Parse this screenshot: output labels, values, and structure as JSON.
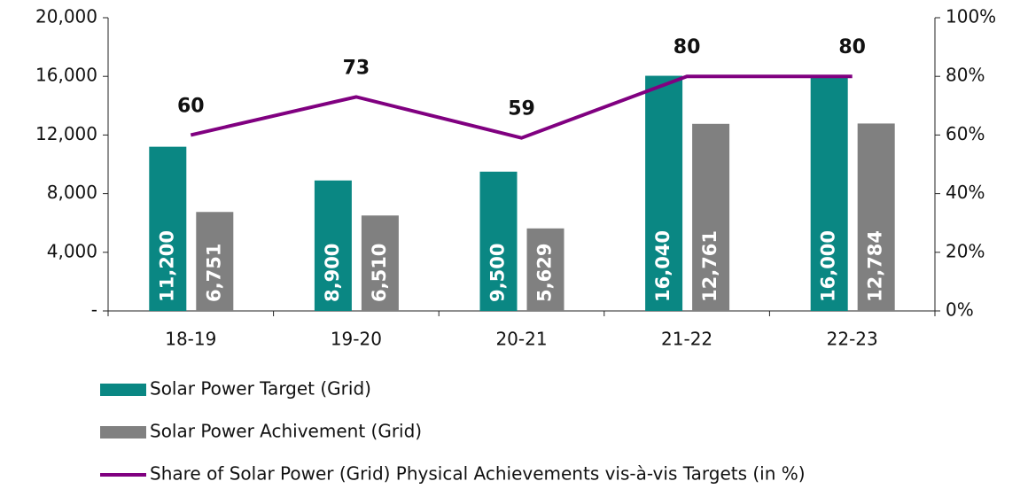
{
  "chart_data": {
    "type": "bar",
    "categories": [
      "18-19",
      "19-20",
      "20-21",
      "21-22",
      "22-23"
    ],
    "series": [
      {
        "name": "Solar Power Target (Grid)",
        "type": "bar",
        "color": "#0a8783",
        "values": [
          11200,
          8900,
          9500,
          16040,
          16000
        ],
        "value_labels": [
          "11,200",
          "8,900",
          "9,500",
          "16,040",
          "16,000"
        ]
      },
      {
        "name": "Solar Power Achivement (Grid)",
        "type": "bar",
        "color": "#808080",
        "values": [
          6751,
          6510,
          5629,
          12761,
          12784
        ],
        "value_labels": [
          "6,751",
          "6,510",
          "5,629",
          "12,761",
          "12,784"
        ]
      },
      {
        "name": "Share of Solar Power (Grid) Physical Achievements vis-à-vis Targets (in %)",
        "type": "line",
        "axis": "y2",
        "color": "#800080",
        "values": [
          60,
          73,
          59,
          80,
          80
        ]
      }
    ],
    "ylim": [
      0,
      20000
    ],
    "yticks": [
      {
        "value": 0,
        "label": "-"
      },
      {
        "value": 4000,
        "label": "4,000"
      },
      {
        "value": 8000,
        "label": "8,000"
      },
      {
        "value": 12000,
        "label": "12,000"
      },
      {
        "value": 16000,
        "label": "16,000"
      },
      {
        "value": 20000,
        "label": "20,000"
      }
    ],
    "y2lim": [
      0,
      100
    ],
    "y2ticks": [
      {
        "value": 0,
        "label": "0%"
      },
      {
        "value": 20,
        "label": "20%"
      },
      {
        "value": 40,
        "label": "40%"
      },
      {
        "value": 60,
        "label": "60%"
      },
      {
        "value": 80,
        "label": "80%"
      },
      {
        "value": 100,
        "label": "100%"
      }
    ],
    "legend": "bottom-left"
  }
}
